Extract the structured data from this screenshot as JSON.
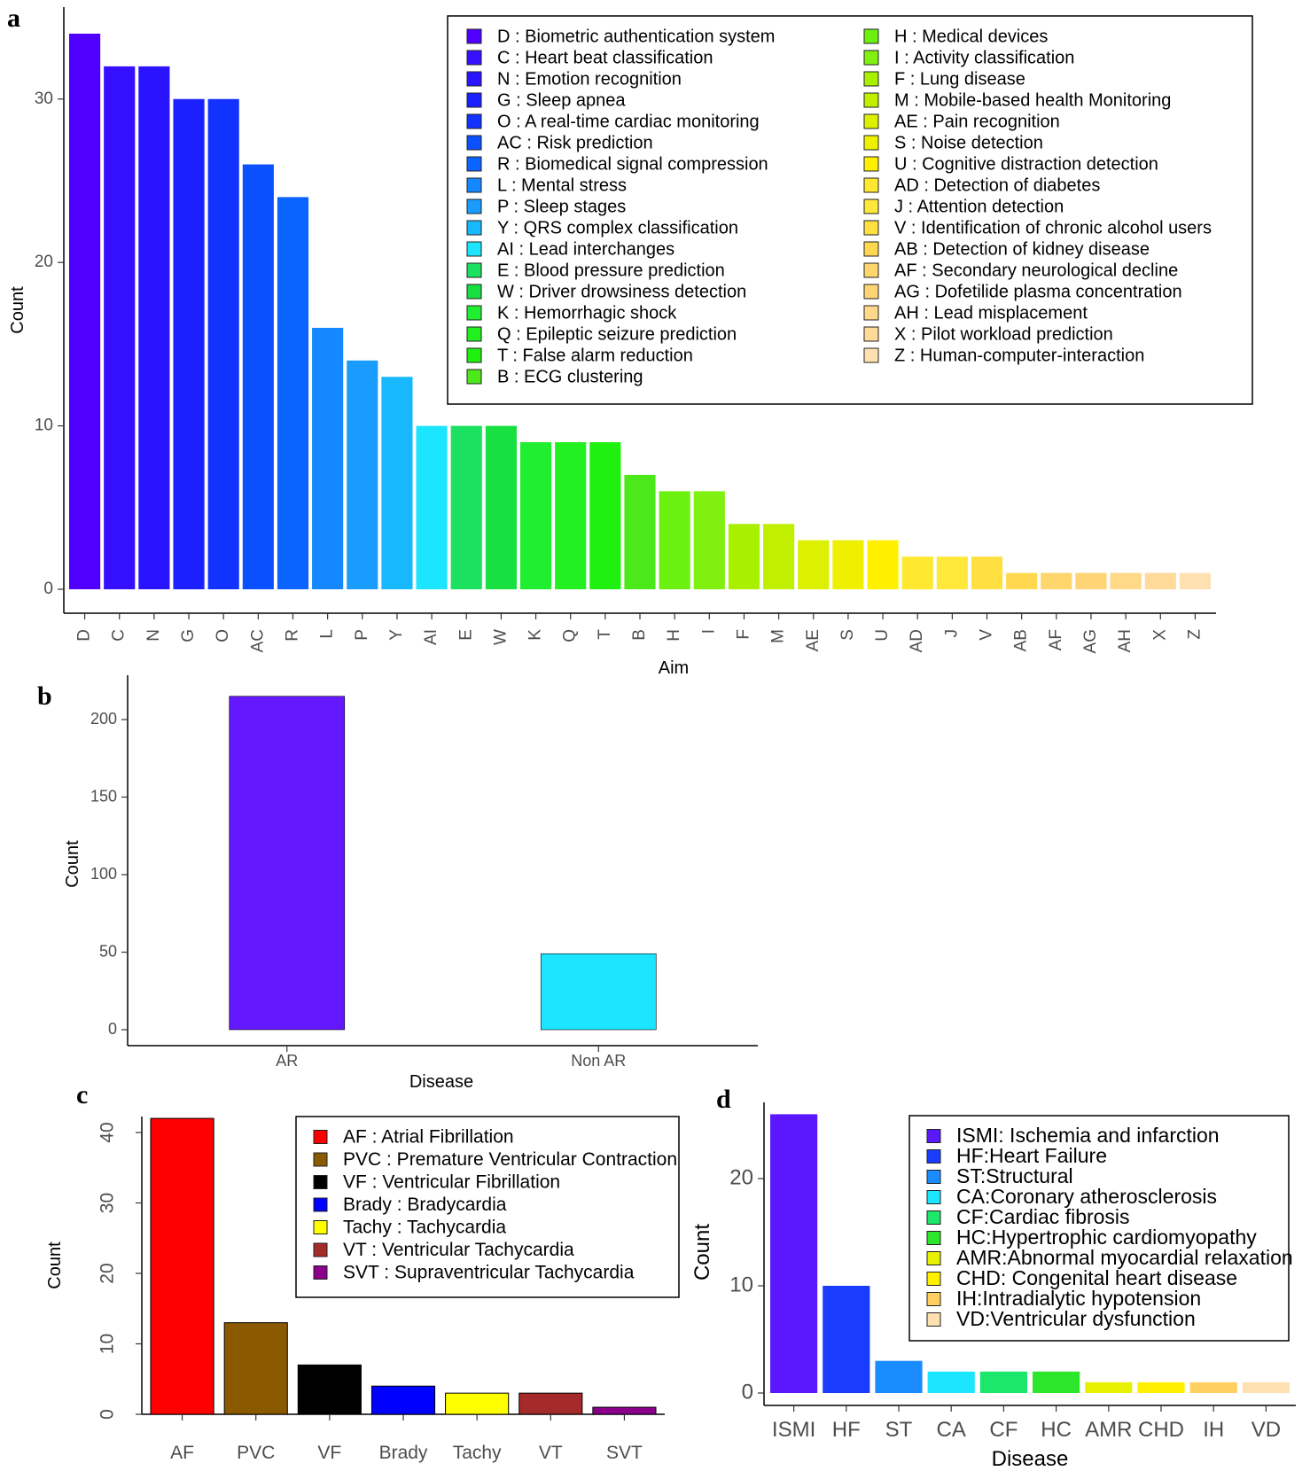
{
  "panels": {
    "a": "a",
    "b": "b",
    "c": "c",
    "d": "d"
  },
  "chart_data": [
    {
      "id": "a",
      "type": "bar",
      "xlabel": "Aim",
      "ylabel": "Count",
      "ylim": [
        0,
        34
      ],
      "y_ticks": [
        0,
        10,
        20,
        30
      ],
      "grid": false,
      "legend_position": "top-right",
      "categories": [
        "D",
        "C",
        "N",
        "G",
        "O",
        "AC",
        "R",
        "L",
        "P",
        "Y",
        "AI",
        "E",
        "W",
        "K",
        "Q",
        "T",
        "B",
        "H",
        "I",
        "F",
        "M",
        "AE",
        "S",
        "U",
        "AD",
        "J",
        "V",
        "AB",
        "AF",
        "AG",
        "AH",
        "X",
        "Z"
      ],
      "values": [
        34,
        32,
        32,
        30,
        30,
        26,
        24,
        16,
        14,
        13,
        10,
        10,
        10,
        9,
        9,
        9,
        7,
        6,
        6,
        4,
        4,
        3,
        3,
        3,
        2,
        2,
        2,
        1,
        1,
        1,
        1,
        1,
        1
      ],
      "colors": [
        "#5000FF",
        "#3410FF",
        "#2A14FF",
        "#1A20FF",
        "#1232FF",
        "#0A50FF",
        "#0A64FF",
        "#1688FF",
        "#1A9CFF",
        "#18B8FF",
        "#1CE6FF",
        "#1CE060",
        "#18E040",
        "#20EE30",
        "#22F020",
        "#20F010",
        "#4CE81A",
        "#6CF010",
        "#80F010",
        "#A8F000",
        "#C0F000",
        "#DCF000",
        "#EEF000",
        "#FFF000",
        "#FFE830",
        "#FFE83A",
        "#FFE040",
        "#FFD850",
        "#FFD66C",
        "#FFD475",
        "#FFD888",
        "#FFDA98",
        "#FFE0B0"
      ],
      "legend": [
        {
          "code": "D",
          "label": "D : Biometric authentication system"
        },
        {
          "code": "C",
          "label": "C : Heart beat classification"
        },
        {
          "code": "N",
          "label": "N : Emotion recognition"
        },
        {
          "code": "G",
          "label": "G : Sleep apnea"
        },
        {
          "code": "O",
          "label": "O : A real-time cardiac monitoring"
        },
        {
          "code": "AC",
          "label": "AC : Risk prediction"
        },
        {
          "code": "R",
          "label": "R : Biomedical signal compression"
        },
        {
          "code": "L",
          "label": "L : Mental stress"
        },
        {
          "code": "P",
          "label": "P : Sleep stages"
        },
        {
          "code": "Y",
          "label": "Y : QRS complex classification"
        },
        {
          "code": "AI",
          "label": "AI : Lead interchanges"
        },
        {
          "code": "E",
          "label": "E : Blood pressure prediction"
        },
        {
          "code": "W",
          "label": "W : Driver drowsiness detection"
        },
        {
          "code": "K",
          "label": "K : Hemorrhagic shock"
        },
        {
          "code": "Q",
          "label": "Q : Epileptic seizure prediction"
        },
        {
          "code": "T",
          "label": "T : False alarm reduction"
        },
        {
          "code": "B",
          "label": "B : ECG clustering"
        },
        {
          "code": "H",
          "label": "H : Medical devices"
        },
        {
          "code": "I",
          "label": "I : Activity classification"
        },
        {
          "code": "F",
          "label": "F : Lung disease"
        },
        {
          "code": "M",
          "label": "M : Mobile-based health Monitoring"
        },
        {
          "code": "AE",
          "label": "AE : Pain recognition"
        },
        {
          "code": "S",
          "label": "S : Noise detection"
        },
        {
          "code": "U",
          "label": "U : Cognitive distraction detection"
        },
        {
          "code": "AD",
          "label": "AD : Detection of diabetes"
        },
        {
          "code": "J",
          "label": "J : Attention detection"
        },
        {
          "code": "V",
          "label": "V : Identification of chronic alcohol users"
        },
        {
          "code": "AB",
          "label": "AB : Detection of kidney disease"
        },
        {
          "code": "AF",
          "label": "AF : Secondary neurological decline"
        },
        {
          "code": "AG",
          "label": "AG : Dofetilide plasma concentration"
        },
        {
          "code": "AH",
          "label": "AH : Lead misplacement"
        },
        {
          "code": "X",
          "label": "X : Pilot workload prediction"
        },
        {
          "code": "Z",
          "label": "Z :  Human-computer-interaction"
        }
      ]
    },
    {
      "id": "b",
      "type": "bar",
      "xlabel": "Disease",
      "ylabel": "Count",
      "ylim": [
        0,
        225
      ],
      "y_ticks": [
        0,
        50,
        100,
        150,
        200
      ],
      "grid": false,
      "categories": [
        "AR",
        "Non AR"
      ],
      "values": [
        215,
        49
      ],
      "colors": [
        "#6318FF",
        "#1CE6FF"
      ]
    },
    {
      "id": "c",
      "type": "bar",
      "xlabel": "",
      "ylabel": "Count",
      "ylim": [
        0,
        42
      ],
      "y_ticks": [
        0,
        10,
        20,
        30,
        40
      ],
      "grid": false,
      "legend_position": "top-right",
      "categories": [
        "AF",
        "PVC",
        "VF",
        "Brady",
        "Tachy",
        "VT",
        "SVT"
      ],
      "values": [
        42,
        13,
        7,
        4,
        3,
        3,
        1
      ],
      "colors": [
        "#FF0000",
        "#8B5A00",
        "#000000",
        "#0000FF",
        "#FFFF00",
        "#A52A2A",
        "#8B008B"
      ],
      "legend": [
        {
          "code": "AF",
          "label": "AF : Atrial Fibrillation"
        },
        {
          "code": "PVC",
          "label": "PVC : Premature Ventricular Contraction"
        },
        {
          "code": "VF",
          "label": "VF : Ventricular Fibrillation"
        },
        {
          "code": "Brady",
          "label": "Brady : Bradycardia"
        },
        {
          "code": "Tachy",
          "label": "Tachy : Tachycardia"
        },
        {
          "code": "VT",
          "label": "VT : Ventricular Tachycardia"
        },
        {
          "code": "SVT",
          "label": "SVT : Supraventricular Tachycardia"
        }
      ]
    },
    {
      "id": "d",
      "type": "bar",
      "xlabel": "Disease",
      "ylabel": "Count",
      "ylim": [
        0,
        26
      ],
      "y_ticks": [
        0,
        10,
        20
      ],
      "grid": false,
      "legend_position": "top-right",
      "categories": [
        "ISMI",
        "HF",
        "ST",
        "CA",
        "CF",
        "HC",
        "AMR",
        "CHD",
        "IH",
        "VD"
      ],
      "values": [
        26,
        10,
        3,
        2,
        2,
        2,
        1,
        1,
        1,
        1
      ],
      "colors": [
        "#5B18FF",
        "#1A3CFF",
        "#1A8CFF",
        "#1CE6FF",
        "#1CE66C",
        "#2CE62C",
        "#E6F000",
        "#FFF000",
        "#FFD060",
        "#FFE0B0"
      ],
      "legend": [
        {
          "code": "ISMI",
          "label": "ISMI: Ischemia and infarction"
        },
        {
          "code": "HF",
          "label": "HF:Heart Failure"
        },
        {
          "code": "ST",
          "label": "ST:Structural"
        },
        {
          "code": "CA",
          "label": "CA:Coronary atherosclerosis"
        },
        {
          "code": "CF",
          "label": "CF:Cardiac fibrosis"
        },
        {
          "code": "HC",
          "label": "HC:Hypertrophic cardiomyopathy"
        },
        {
          "code": "AMR",
          "label": "AMR:Abnormal myocardial relaxation"
        },
        {
          "code": "CHD",
          "label": "CHD: Congenital heart disease"
        },
        {
          "code": "IH",
          "label": "IH:Intradialytic hypotension"
        },
        {
          "code": "VD",
          "label": "VD:Ventricular dysfunction"
        }
      ]
    }
  ]
}
